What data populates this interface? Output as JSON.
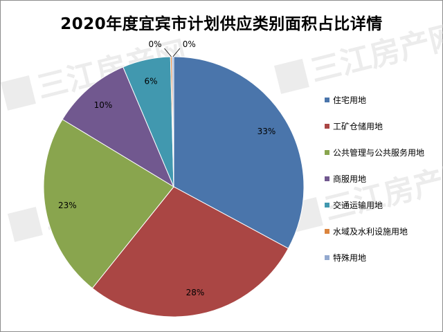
{
  "chart_data": {
    "type": "pie",
    "title": "2020年度宜宾市计划供应类别面积占比详情",
    "slices": [
      {
        "label": "住宅用地",
        "value": 33,
        "display": "33%",
        "color": "#4a75ab"
      },
      {
        "label": "工矿仓储用地",
        "value": 28,
        "display": "28%",
        "color": "#aa4644"
      },
      {
        "label": "公共管理与公共服务用地",
        "value": 23,
        "display": "23%",
        "color": "#89a54e"
      },
      {
        "label": "商服用地",
        "value": 10,
        "display": "10%",
        "color": "#71588f"
      },
      {
        "label": "交通运输用地",
        "value": 6,
        "display": "6%",
        "color": "#4198af"
      },
      {
        "label": "水域及水利设施用地",
        "value": 0.2,
        "display": "0%",
        "color": "#db843d"
      },
      {
        "label": "特殊用地",
        "value": 0.2,
        "display": "0%",
        "color": "#93a9cf"
      }
    ],
    "legend_position": "right"
  },
  "watermark": {
    "text": "三江房产网"
  }
}
